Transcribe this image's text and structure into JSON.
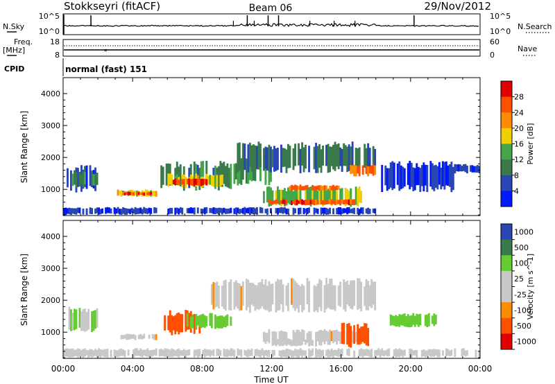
{
  "header": {
    "station": "Stokkseyri (fitACF)",
    "beam": "Beam 06",
    "date": "29/Nov/2012"
  },
  "params": {
    "nsky_label": "N.Sky",
    "nsky_ticks": [
      "10^5",
      "10^0"
    ],
    "nsearch_label": "N.Search",
    "nsearch_ticks": [
      "10^5",
      "10^0"
    ],
    "freq_label_1": "Freq.",
    "freq_label_2": "[MHz]",
    "freq_ticks": [
      "18",
      "8"
    ],
    "nave_label": "Nave",
    "nave_ticks": [
      "60",
      "0"
    ],
    "cpid_label": "CPID",
    "cpid_value": "normal (fast) 151"
  },
  "colors": {
    "power": [
      "#0018ff",
      "#2a46b4",
      "#3a7a4a",
      "#44a64a",
      "#f0d000",
      "#ff8c00",
      "#ff5000",
      "#e00000"
    ],
    "velocity": [
      "#e00000",
      "#ff5000",
      "#ff8c00",
      "#c8c8c8",
      "#c8c8c8",
      "#66cc33",
      "#3a7a4a",
      "#2a46b4"
    ],
    "ground_scatter": "#c0c0c0"
  },
  "chart_data": [
    {
      "type": "heatmap",
      "name": "power",
      "xlabel": "Time UT",
      "ylabel": "Slant Range [km]",
      "xlim": [
        0,
        24
      ],
      "ylim": [
        180,
        4500
      ],
      "x_ticks": [
        "00:00",
        "04:00",
        "08:00",
        "12:00",
        "16:00",
        "20:00",
        "00:00"
      ],
      "y_ticks": [
        1000,
        2000,
        3000,
        4000
      ],
      "colorbar_label": "Power [dB]",
      "colorbar_ticks": [
        "4",
        "8",
        "12",
        "16",
        "20",
        "24",
        "28"
      ],
      "colorbar_range": [
        0,
        32
      ],
      "regions": [
        {
          "t0": 0.2,
          "t1": 2.0,
          "r0": 900,
          "r1": 1800,
          "value": 6
        },
        {
          "t0": 0.5,
          "t1": 2.0,
          "r0": 1050,
          "r1": 1600,
          "value": 11
        },
        {
          "t0": 3.1,
          "t1": 5.4,
          "r0": 760,
          "r1": 1000,
          "value": 18
        },
        {
          "t0": 3.4,
          "t1": 5.1,
          "r0": 800,
          "r1": 930,
          "value": 26
        },
        {
          "t0": 5.6,
          "t1": 9.8,
          "r0": 950,
          "r1": 1900,
          "value": 10
        },
        {
          "t0": 6.0,
          "t1": 9.2,
          "r0": 1050,
          "r1": 1500,
          "value": 18
        },
        {
          "t0": 6.3,
          "t1": 8.3,
          "r0": 1100,
          "r1": 1350,
          "value": 27
        },
        {
          "t0": 9.8,
          "t1": 12.0,
          "r0": 1100,
          "r1": 2000,
          "value": 12
        },
        {
          "t0": 11.5,
          "t1": 17.5,
          "r0": 450,
          "r1": 1100,
          "value": 15
        },
        {
          "t0": 11.8,
          "t1": 16.8,
          "r0": 500,
          "r1": 700,
          "value": 26
        },
        {
          "t0": 13.0,
          "t1": 16.0,
          "r0": 950,
          "r1": 1150,
          "value": 24
        },
        {
          "t0": 10.0,
          "t1": 18.0,
          "r0": 1500,
          "r1": 2500,
          "value": 9
        },
        {
          "t0": 16.5,
          "t1": 18.0,
          "r0": 1400,
          "r1": 1800,
          "value": 24
        },
        {
          "t0": 18.3,
          "t1": 22.5,
          "r0": 900,
          "r1": 1900,
          "value": 4
        },
        {
          "t0": 0.0,
          "t1": 18.0,
          "r0": 200,
          "r1": 450,
          "value": 5
        },
        {
          "t0": 22.5,
          "t1": 24.0,
          "r0": 1500,
          "r1": 1800,
          "value": 4
        }
      ]
    },
    {
      "type": "heatmap",
      "name": "velocity",
      "xlabel": "Time UT",
      "ylabel": "Slant Range [km]",
      "xlim": [
        0,
        24
      ],
      "ylim": [
        180,
        4500
      ],
      "x_ticks": [
        "00:00",
        "04:00",
        "08:00",
        "12:00",
        "16:00",
        "20:00",
        "00:00"
      ],
      "y_ticks": [
        1000,
        2000,
        3000,
        4000
      ],
      "colorbar_label": "Velocity [m s^-1]",
      "colorbar_ticks": [
        "1000",
        "500",
        "100",
        "25",
        "-25",
        "-100",
        "-500",
        "-1000"
      ],
      "regions": [
        {
          "t0": 0.2,
          "t1": 2.0,
          "r0": 1000,
          "r1": 1800,
          "value": 100
        },
        {
          "t0": 3.1,
          "t1": 5.4,
          "r0": 750,
          "r1": 950,
          "value": 0
        },
        {
          "t0": 5.8,
          "t1": 8.0,
          "r0": 900,
          "r1": 1700,
          "value": -300
        },
        {
          "t0": 7.0,
          "t1": 9.8,
          "r0": 1100,
          "r1": 1600,
          "value": 300
        },
        {
          "t0": 8.5,
          "t1": 18.0,
          "r0": 1600,
          "r1": 2700,
          "value": 0
        },
        {
          "t0": 11.5,
          "t1": 17.5,
          "r0": 600,
          "r1": 1100,
          "value": 0
        },
        {
          "t0": 12.0,
          "t1": 15.0,
          "r0": 550,
          "r1": 800,
          "value": 60
        },
        {
          "t0": 16.0,
          "t1": 17.8,
          "r0": 500,
          "r1": 1300,
          "value": -300
        },
        {
          "t0": 18.8,
          "t1": 21.5,
          "r0": 1150,
          "r1": 1600,
          "value": 300
        },
        {
          "t0": 0.0,
          "t1": 24.0,
          "r0": 200,
          "r1": 500,
          "value": 60
        }
      ]
    }
  ]
}
